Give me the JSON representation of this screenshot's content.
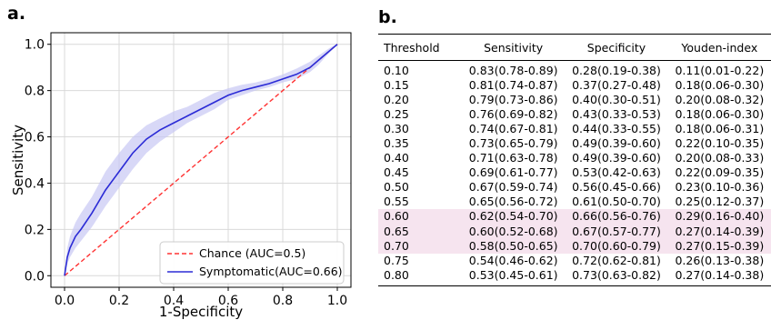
{
  "panels": {
    "a": "a.",
    "b": "b."
  },
  "chart_data": [
    {
      "type": "line",
      "xlabel": "1-Specificity",
      "ylabel": "Sensitivity",
      "xlim": [
        -0.05,
        1.05
      ],
      "ylim": [
        -0.05,
        1.05
      ],
      "xticks": [
        0.0,
        0.2,
        0.4,
        0.6,
        0.8,
        1.0
      ],
      "yticks": [
        0.0,
        0.2,
        0.4,
        0.6,
        0.8,
        1.0
      ],
      "tick_labels": [
        "0.0",
        "0.2",
        "0.4",
        "0.6",
        "0.8",
        "1.0"
      ],
      "grid": true,
      "legend_position": "bottom-right",
      "series": [
        {
          "name": "Chance (AUC=0.5)",
          "style": "dashed",
          "color": "#ff3333",
          "x": [
            0,
            1
          ],
          "y": [
            0,
            1
          ]
        },
        {
          "name": "Symptomatic(AUC=0.66)",
          "style": "solid",
          "color": "#2b2bd6",
          "band_color": "#c7c7f3",
          "x": [
            0,
            0.01,
            0.02,
            0.04,
            0.06,
            0.1,
            0.15,
            0.2,
            0.25,
            0.3,
            0.35,
            0.4,
            0.45,
            0.5,
            0.55,
            0.6,
            0.65,
            0.7,
            0.75,
            0.8,
            0.85,
            0.9,
            0.93,
            0.96,
            0.98,
            1.0
          ],
          "y": [
            0,
            0.08,
            0.12,
            0.17,
            0.2,
            0.27,
            0.37,
            0.45,
            0.53,
            0.59,
            0.63,
            0.66,
            0.69,
            0.72,
            0.75,
            0.78,
            0.8,
            0.815,
            0.83,
            0.85,
            0.87,
            0.9,
            0.93,
            0.96,
            0.98,
            1.0
          ],
          "lower": [
            0,
            0.05,
            0.08,
            0.12,
            0.15,
            0.21,
            0.3,
            0.38,
            0.46,
            0.53,
            0.58,
            0.62,
            0.66,
            0.69,
            0.72,
            0.76,
            0.78,
            0.8,
            0.815,
            0.835,
            0.85,
            0.88,
            0.91,
            0.95,
            0.975,
            1.0
          ],
          "upper": [
            0,
            0.12,
            0.17,
            0.23,
            0.27,
            0.34,
            0.45,
            0.53,
            0.6,
            0.65,
            0.68,
            0.71,
            0.73,
            0.76,
            0.79,
            0.81,
            0.825,
            0.835,
            0.85,
            0.87,
            0.895,
            0.925,
            0.95,
            0.975,
            0.99,
            1.0
          ]
        }
      ]
    },
    {
      "type": "table",
      "columns": [
        "Threshold",
        "Sensitivity",
        "Specificity",
        "Youden-index"
      ],
      "highlight_rows": [
        10,
        11,
        12
      ],
      "highlight_color": "#f6e4ef",
      "rows": [
        [
          "0.10",
          "0.83(0.78-0.89)",
          "0.28(0.19-0.38)",
          "0.11(0.01-0.22)"
        ],
        [
          "0.15",
          "0.81(0.74-0.87)",
          "0.37(0.27-0.48)",
          "0.18(0.06-0.30)"
        ],
        [
          "0.20",
          "0.79(0.73-0.86)",
          "0.40(0.30-0.51)",
          "0.20(0.08-0.32)"
        ],
        [
          "0.25",
          "0.76(0.69-0.82)",
          "0.43(0.33-0.53)",
          "0.18(0.06-0.30)"
        ],
        [
          "0.30",
          "0.74(0.67-0.81)",
          "0.44(0.33-0.55)",
          "0.18(0.06-0.31)"
        ],
        [
          "0.35",
          "0.73(0.65-0.79)",
          "0.49(0.39-0.60)",
          "0.22(0.10-0.35)"
        ],
        [
          "0.40",
          "0.71(0.63-0.78)",
          "0.49(0.39-0.60)",
          "0.20(0.08-0.33)"
        ],
        [
          "0.45",
          "0.69(0.61-0.77)",
          "0.53(0.42-0.63)",
          "0.22(0.09-0.35)"
        ],
        [
          "0.50",
          "0.67(0.59-0.74)",
          "0.56(0.45-0.66)",
          "0.23(0.10-0.36)"
        ],
        [
          "0.55",
          "0.65(0.56-0.72)",
          "0.61(0.50-0.70)",
          "0.25(0.12-0.37)"
        ],
        [
          "0.60",
          "0.62(0.54-0.70)",
          "0.66(0.56-0.76)",
          "0.29(0.16-0.40)"
        ],
        [
          "0.65",
          "0.60(0.52-0.68)",
          "0.67(0.57-0.77)",
          "0.27(0.14-0.39)"
        ],
        [
          "0.70",
          "0.58(0.50-0.65)",
          "0.70(0.60-0.79)",
          "0.27(0.15-0.39)"
        ],
        [
          "0.75",
          "0.54(0.46-0.62)",
          "0.72(0.62-0.81)",
          "0.26(0.13-0.38)"
        ],
        [
          "0.80",
          "0.53(0.45-0.61)",
          "0.73(0.63-0.82)",
          "0.27(0.14-0.38)"
        ]
      ]
    }
  ]
}
